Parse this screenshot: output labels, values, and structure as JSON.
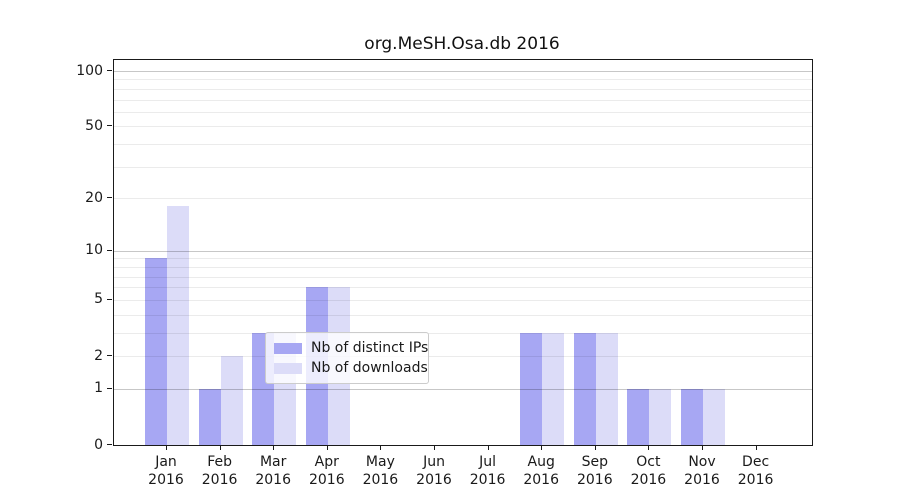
{
  "chart_data": {
    "type": "bar",
    "title": "org.MeSH.Osa.db 2016",
    "year_label": "2016",
    "categories": [
      "Jan",
      "Feb",
      "Mar",
      "Apr",
      "May",
      "Jun",
      "Jul",
      "Aug",
      "Sep",
      "Oct",
      "Nov",
      "Dec"
    ],
    "series": [
      {
        "name": "Nb of distinct IPs",
        "color": "#a7a7f3",
        "values": [
          9,
          1,
          3,
          6,
          0,
          0,
          0,
          3,
          3,
          1,
          1,
          0
        ]
      },
      {
        "name": "Nb of downloads",
        "color": "#dcdcf8",
        "values": [
          18,
          2,
          3,
          6,
          0,
          0,
          0,
          3,
          3,
          1,
          1,
          0
        ]
      }
    ],
    "y_axis": {
      "scale": "log10(1+x)",
      "tick_values": [
        0,
        1,
        2,
        5,
        10,
        20,
        50,
        100
      ],
      "major_gridlines": [
        1,
        10,
        100
      ],
      "minor_gridlines": [
        2,
        3,
        4,
        5,
        6,
        7,
        8,
        9,
        20,
        30,
        40,
        50,
        60,
        70,
        80,
        90
      ],
      "ylim_top_value": 114
    },
    "x_axis": {
      "tick_label_line2": "2016"
    },
    "legend": {
      "entries": [
        "Nb of distinct IPs",
        "Nb of downloads"
      ],
      "position": "inside-bottom-center"
    },
    "grid": true,
    "colors": {
      "major_grid": "#c7c7c7",
      "minor_grid": "#eaeaea",
      "axis": "#1a1a1a",
      "background": "#ffffff"
    }
  }
}
